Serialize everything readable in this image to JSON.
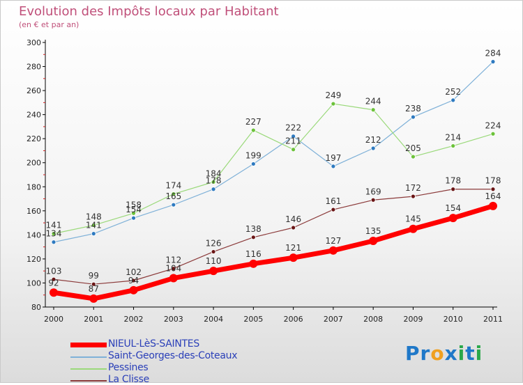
{
  "title": "Evolution des Impôts locaux par Habitant",
  "subtitle": "(en € et par an)",
  "logo": {
    "text": "Proxiti",
    "letters": [
      "P",
      "r",
      "o",
      "x",
      "i",
      "t",
      "i"
    ],
    "colors": [
      "#1f78c8",
      "#1f78c8",
      "#f0a020",
      "#1f78c8",
      "#2aa84a",
      "#1f78c8",
      "#2aa84a"
    ]
  },
  "chart_data": {
    "type": "line",
    "x": [
      "2000",
      "2001",
      "2002",
      "2003",
      "2004",
      "2005",
      "2006",
      "2007",
      "2008",
      "2009",
      "2010",
      "2011"
    ],
    "ylim": [
      80,
      300
    ],
    "yticks": [
      80,
      100,
      120,
      140,
      160,
      180,
      200,
      220,
      240,
      260,
      280,
      300
    ],
    "grid": false,
    "legend": "bottom-left",
    "series": [
      {
        "name": "NIEUL-LèS-SAINTES",
        "color": "#ff0000",
        "marker": "#ff0000",
        "width": 7,
        "r": 6,
        "values": [
          92,
          87,
          94,
          104,
          110,
          116,
          121,
          127,
          135,
          145,
          154,
          164
        ],
        "labels": [
          "92",
          "87",
          "94",
          "104",
          "110",
          "116",
          "121",
          "127",
          "135",
          "145",
          "154",
          "164"
        ]
      },
      {
        "name": "Saint-Georges-des-Coteaux",
        "color": "#7fb1d8",
        "marker": "#2e7ac0",
        "width": 1.2,
        "r": 3,
        "values": [
          134,
          141,
          154,
          165,
          178,
          199,
          222,
          197,
          212,
          238,
          252,
          284
        ],
        "labels": [
          "134",
          "141",
          "154",
          "165",
          "178",
          "199",
          "222",
          "197",
          "212",
          "238",
          "252",
          "284"
        ]
      },
      {
        "name": "Pessines",
        "color": "#9ad97a",
        "marker": "#6cc23a",
        "width": 1.2,
        "r": 3,
        "values": [
          141,
          148,
          158,
          174,
          184,
          227,
          211,
          249,
          244,
          205,
          214,
          224
        ],
        "labels": [
          "141",
          "148",
          "158",
          "174",
          "184",
          "227",
          "211",
          "249",
          "244",
          "205",
          "214",
          "224"
        ]
      },
      {
        "name": "La Clisse",
        "color": "#8b3a3a",
        "marker": "#6a1515",
        "width": 1.2,
        "r": 3,
        "values": [
          103,
          99,
          102,
          112,
          126,
          138,
          146,
          161,
          169,
          172,
          178,
          178
        ],
        "labels": [
          "103",
          "99",
          "102",
          "112",
          "126",
          "138",
          "146",
          "161",
          "169",
          "172",
          "178",
          "178"
        ]
      }
    ]
  }
}
